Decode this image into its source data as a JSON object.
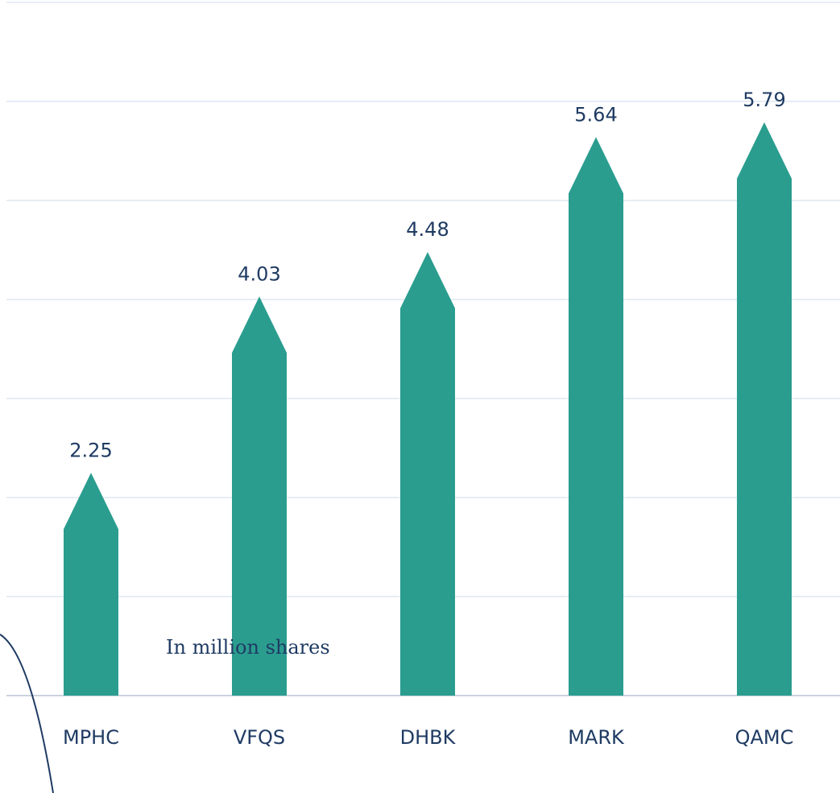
{
  "chart_data": {
    "type": "bar",
    "categories": [
      "MPHC",
      "VFQS",
      "DHBK",
      "MARK",
      "QAMC"
    ],
    "values": [
      2.25,
      4.03,
      4.48,
      5.64,
      5.79
    ],
    "title": "",
    "xlabel": "",
    "ylabel": "",
    "unit_note": "In million shares",
    "ylim": [
      0,
      7
    ],
    "grid": true,
    "legend": "none",
    "colors": {
      "bar": "#2a9d8f",
      "label_text": "#1f3b63",
      "grid": "#dde8f3",
      "axis": "#c9d3de",
      "decor_arc": "#1f3b63"
    }
  }
}
